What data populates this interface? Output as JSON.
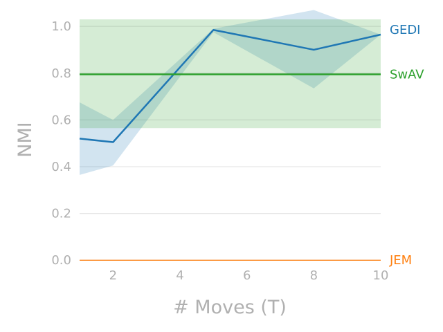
{
  "chart_data": {
    "type": "line",
    "xlabel": "# Moves (T)",
    "ylabel": "NMI",
    "xlim": [
      1,
      10
    ],
    "ylim": [
      -0.02,
      1.03
    ],
    "x_ticks": [
      2,
      4,
      6,
      8,
      10
    ],
    "y_ticks": [
      0.0,
      0.2,
      0.4,
      0.6,
      0.8,
      1.0
    ],
    "x_tick_labels": [
      "2",
      "4",
      "6",
      "8",
      "10"
    ],
    "y_tick_labels": [
      "0.0",
      "0.2",
      "0.4",
      "0.6",
      "0.8",
      "1.0"
    ],
    "grid": "horizontal",
    "legend": "inline-right",
    "series": [
      {
        "name": "GEDI",
        "color": "#1f77b4",
        "x": [
          1,
          2,
          5,
          8,
          10
        ],
        "y": [
          0.52,
          0.505,
          0.985,
          0.9,
          0.965
        ],
        "band_low": [
          0.365,
          0.405,
          0.975,
          0.735,
          0.965
        ],
        "band_high": [
          0.675,
          0.6,
          0.99,
          1.07,
          0.965
        ]
      },
      {
        "name": "SwAV",
        "color": "#2ca02c",
        "constant": 0.795,
        "band_low": 0.565,
        "band_high": 1.03
      },
      {
        "name": "JEM",
        "color": "#ff7f0e",
        "constant": 0.0
      }
    ]
  }
}
